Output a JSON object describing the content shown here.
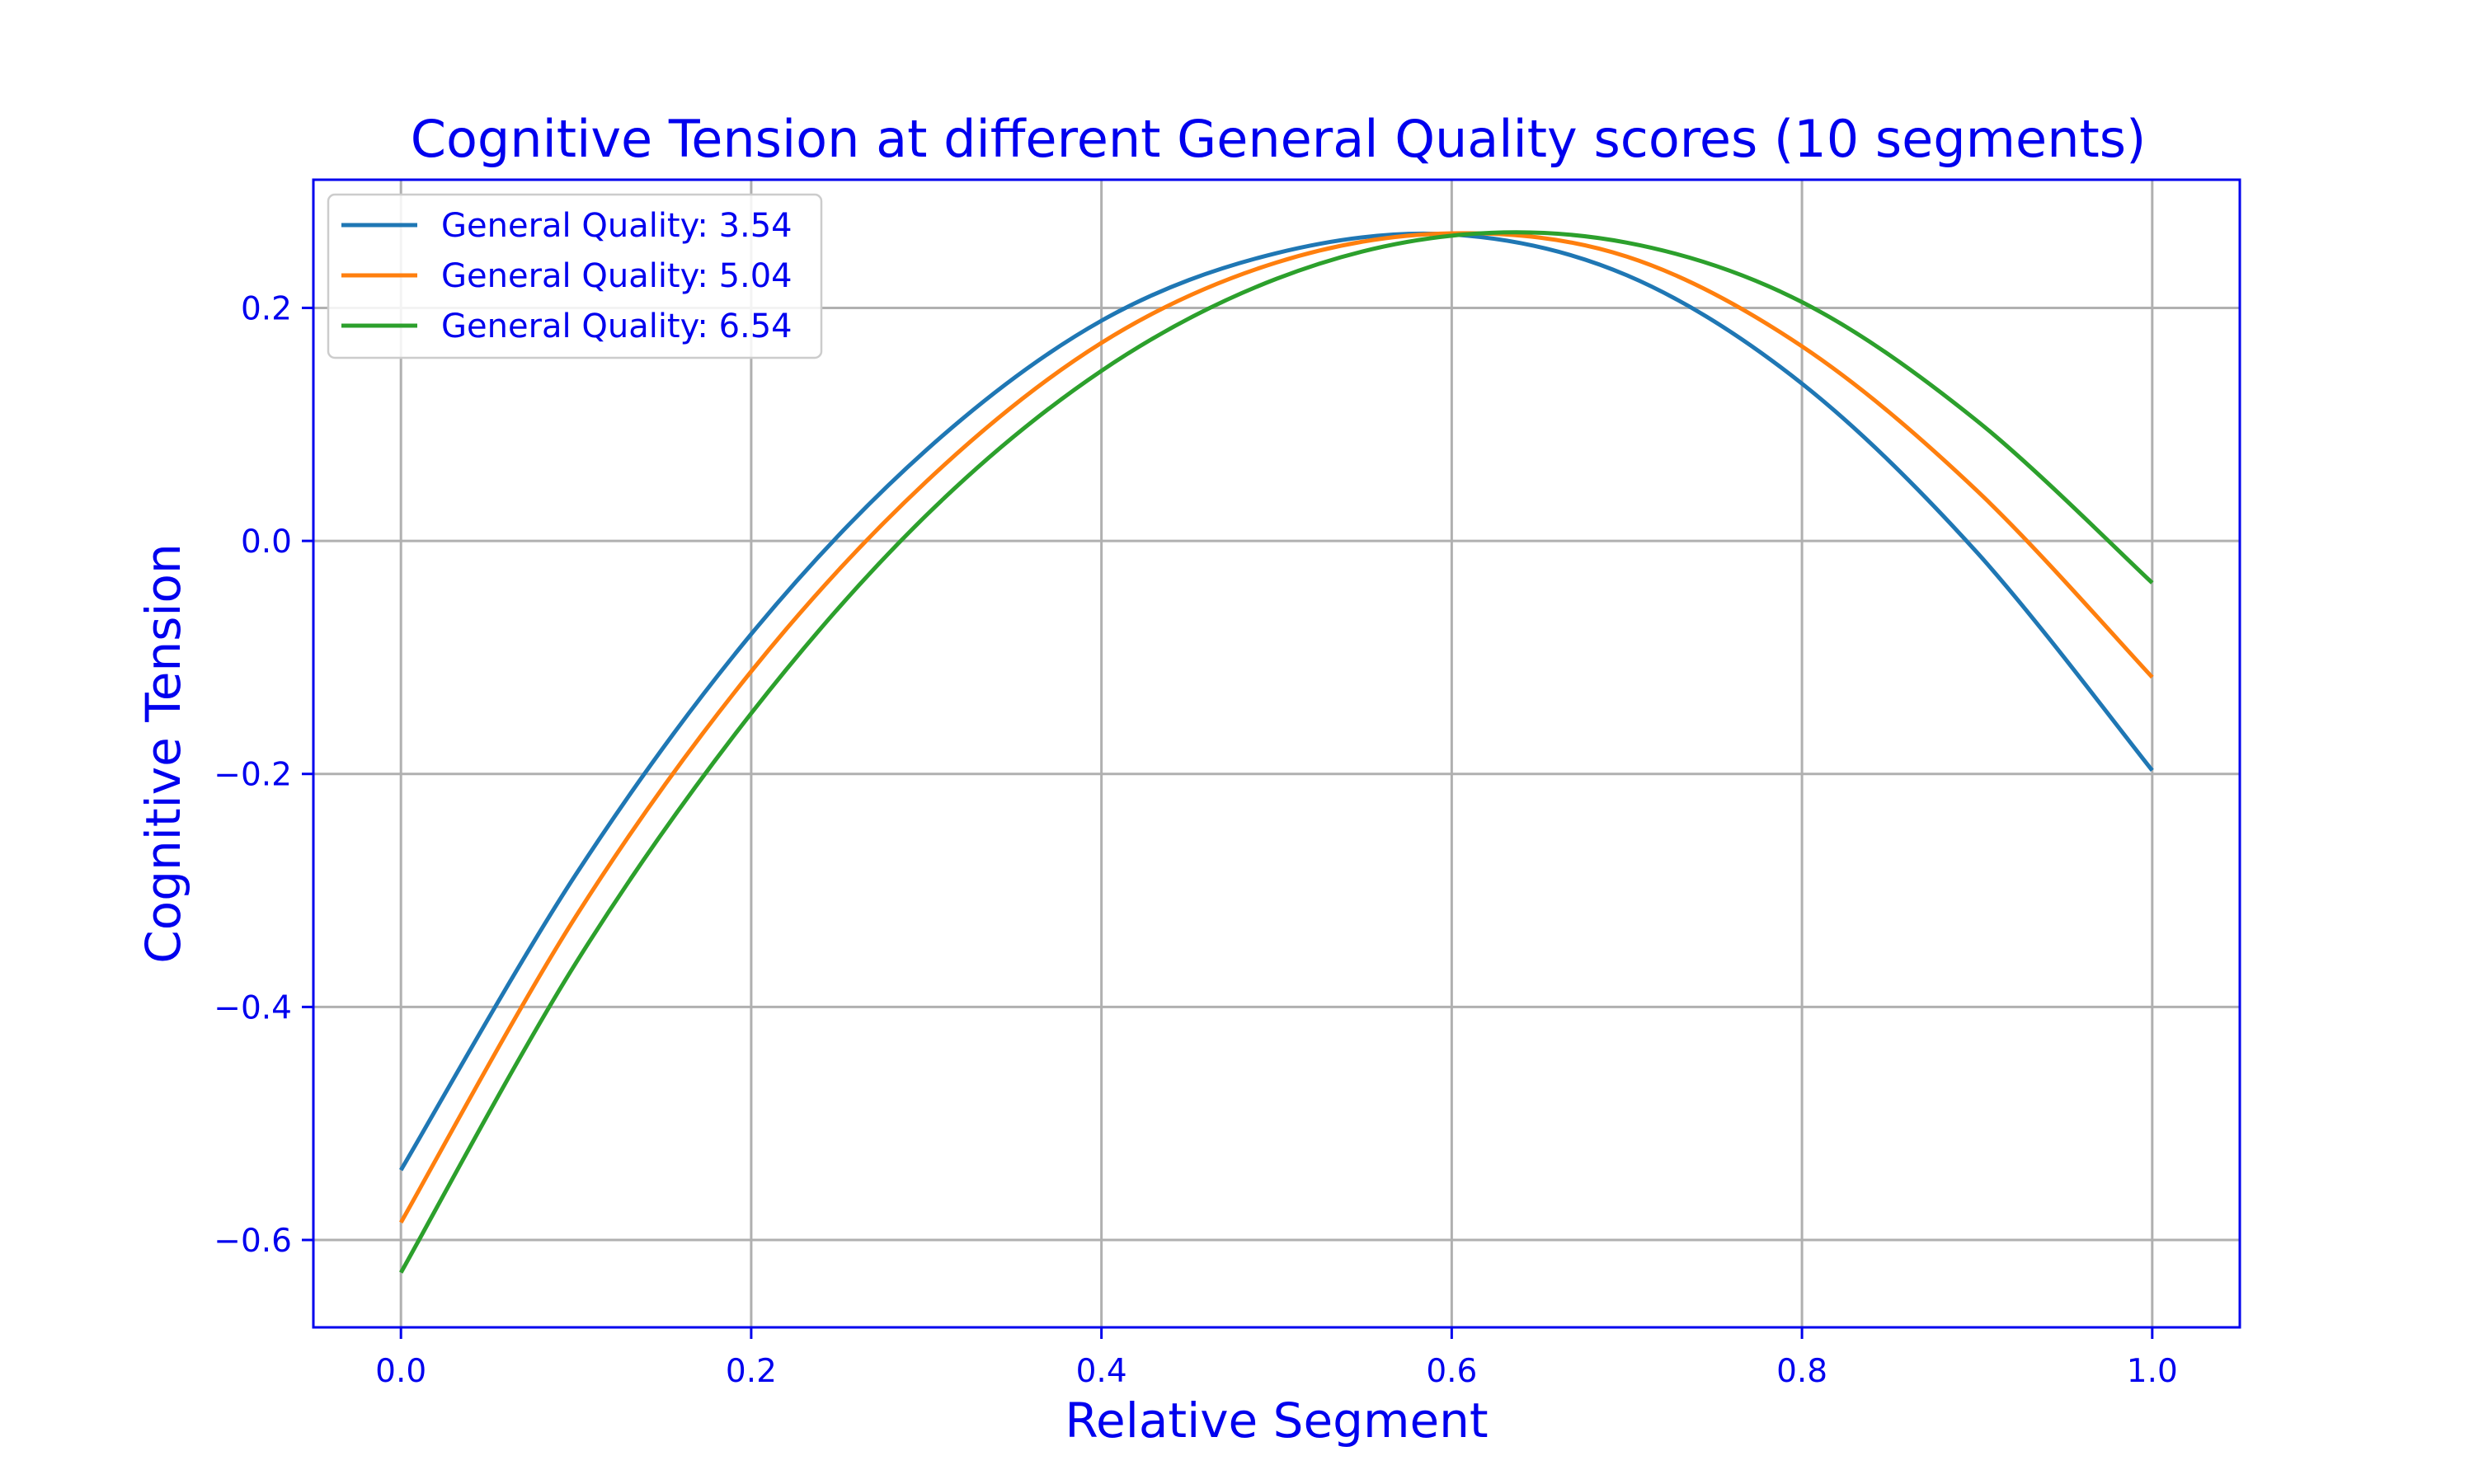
{
  "chart_data": {
    "type": "line",
    "title": "Cognitive Tension at different General Quality scores (10 segments)",
    "xlabel": "Relative Segment",
    "ylabel": "Cognitive Tension",
    "xlim": [
      -0.05,
      1.05
    ],
    "ylim": [
      -0.675,
      0.31
    ],
    "xticks": [
      0.0,
      0.2,
      0.4,
      0.6,
      0.8,
      1.0
    ],
    "xtick_labels": [
      "0.0",
      "0.2",
      "0.4",
      "0.6",
      "0.8",
      "1.0"
    ],
    "yticks": [
      -0.6,
      -0.4,
      -0.2,
      0.0,
      0.2
    ],
    "ytick_labels": [
      "−0.6",
      "−0.4",
      "−0.2",
      "0.0",
      "0.2"
    ],
    "grid": true,
    "legend_position": "top-left",
    "x": [
      0.0,
      0.1,
      0.2,
      0.3,
      0.4,
      0.5,
      0.6,
      0.7,
      0.8,
      0.9,
      1.0
    ],
    "series": [
      {
        "name": "General Quality: 3.54",
        "color": "#1f77b4",
        "values": [
          -0.54,
          -0.286,
          -0.08,
          0.078,
          0.189,
          0.247,
          0.263,
          0.228,
          0.135,
          -0.01,
          -0.197
        ]
      },
      {
        "name": "General Quality: 5.04",
        "color": "#ff7f0e",
        "values": [
          -0.585,
          -0.322,
          -0.112,
          0.051,
          0.17,
          0.239,
          0.264,
          0.244,
          0.167,
          0.043,
          -0.117
        ]
      },
      {
        "name": "General Quality: 6.54",
        "color": "#2ca02c",
        "values": [
          -0.628,
          -0.362,
          -0.148,
          0.022,
          0.146,
          0.225,
          0.262,
          0.256,
          0.205,
          0.103,
          -0.036
        ]
      }
    ]
  }
}
